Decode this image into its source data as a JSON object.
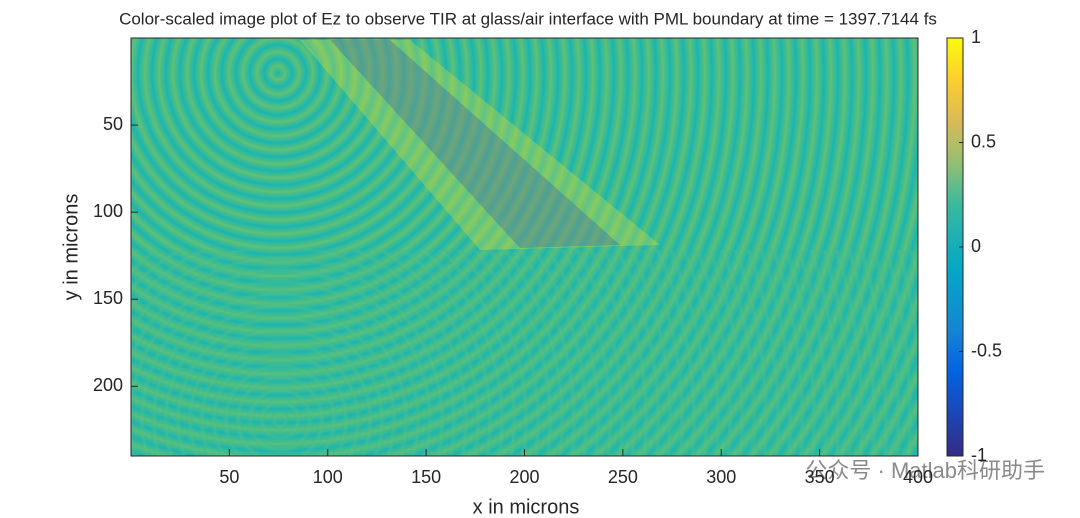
{
  "chart_data": {
    "type": "image",
    "title": "Color-scaled image plot of Ez to observe TIR at glass/air interface with PML boundary at time = 1397.7144 fs",
    "xlabel": "x in microns",
    "ylabel": "y in microns",
    "xlim": [
      0,
      400
    ],
    "ylim": [
      0,
      240
    ],
    "y_reversed": true,
    "xticks": [
      50,
      100,
      150,
      200,
      250,
      300,
      350,
      400
    ],
    "yticks": [
      50,
      100,
      150,
      200
    ],
    "colormap": "parula",
    "colorbar": {
      "clim": [
        -1,
        1
      ],
      "ticks": [
        -1,
        -0.5,
        0,
        0.5,
        1
      ]
    },
    "watermark": "公众号 · Matlab科研助手"
  }
}
